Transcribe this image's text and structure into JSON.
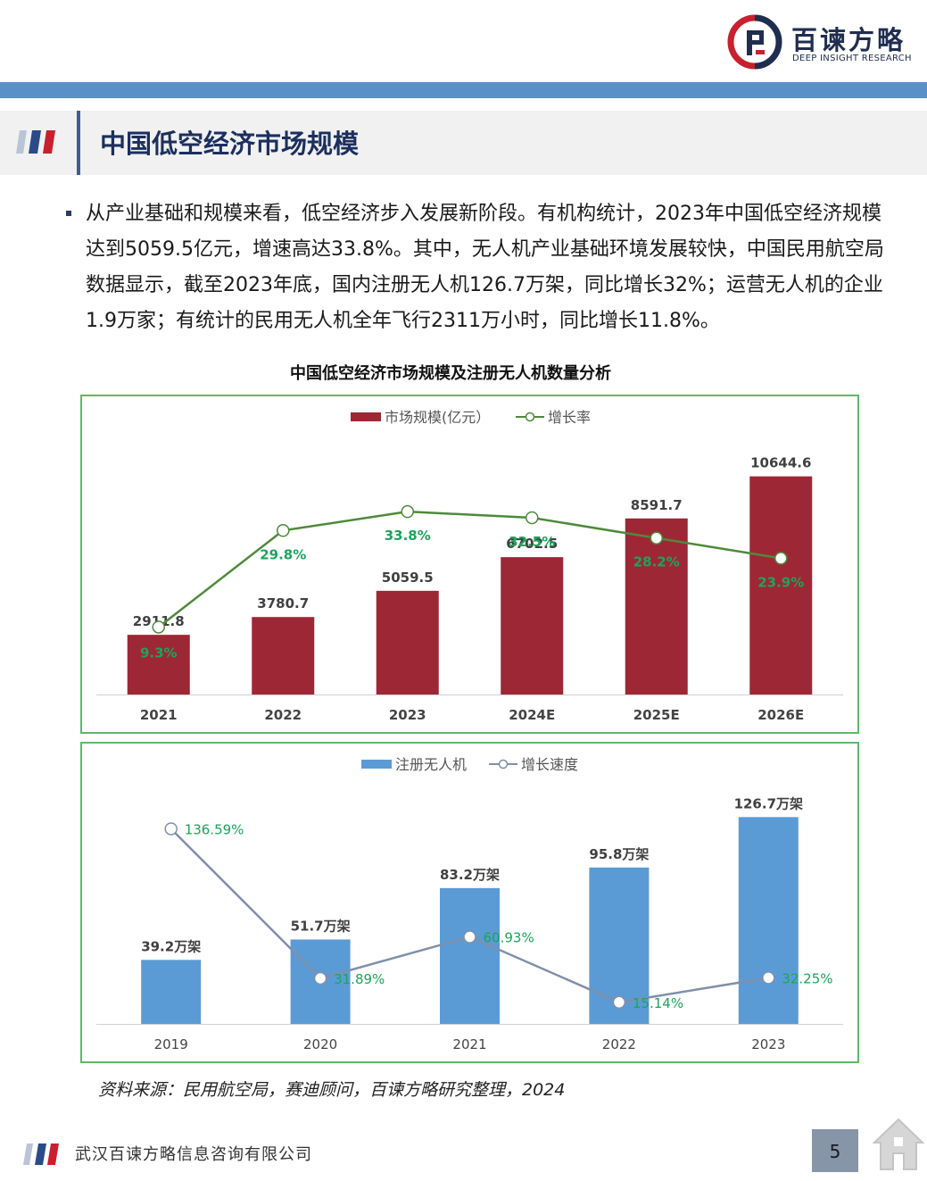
{
  "header": {
    "logo_cn": "百谏方略",
    "logo_en": "DEEP INSIGHT RESEARCH"
  },
  "section": {
    "title": "中国低空经济市场规模"
  },
  "body": {
    "paragraph": "从产业基础和规模来看，低空经济步入发展新阶段。有机构统计，2023年中国低空经济规模达到5059.5亿元，增速高达33.8%。其中，无人机产业基础环境发展较快，中国民用航空局数据显示，截至2023年底，国内注册无人机126.7万架，同比增长32%；运营无人机的企业1.9万家；有统计的民用无人机全年飞行2311万小时，同比增长11.8%。"
  },
  "chart_data": [
    {
      "type": "bar",
      "title": "中国低空经济市场规模及注册无人机数量分析",
      "categories": [
        "2021",
        "2022",
        "2023",
        "2024E",
        "2025E",
        "2026E"
      ],
      "series": [
        {
          "name": "市场规模(亿元）",
          "type": "bar",
          "values": [
            2911.8,
            3780.7,
            5059.5,
            6702.5,
            8591.7,
            10644.6
          ],
          "labels": [
            "2911.8",
            "3780.7",
            "5059.5",
            "6702.5",
            "8591.7",
            "10644.6"
          ]
        },
        {
          "name": "增长率",
          "type": "line",
          "values": [
            9.3,
            29.8,
            33.8,
            32.5,
            28.2,
            23.9
          ],
          "labels": [
            "9.3%",
            "29.8%",
            "33.8%",
            "32.5%",
            "28.2%",
            "23.9%"
          ]
        }
      ],
      "ylim": [
        0,
        11500
      ],
      "y2lim": [
        -5,
        45
      ],
      "colors": {
        "bar": "#9e2735",
        "line": "#4e8a3a",
        "line_label": "#1aa55a",
        "bar_label": "#404040"
      }
    },
    {
      "type": "bar",
      "title": "",
      "categories": [
        "2019",
        "2020",
        "2021",
        "2022",
        "2023"
      ],
      "series": [
        {
          "name": "注册无人机",
          "type": "bar",
          "values": [
            39.2,
            51.7,
            83.2,
            95.8,
            126.7
          ],
          "labels": [
            "39.2万架",
            "51.7万架",
            "83.2万架",
            "95.8万架",
            "126.7万架"
          ]
        },
        {
          "name": "增长速度",
          "type": "line",
          "values": [
            136.59,
            31.89,
            60.93,
            15.14,
            32.25
          ],
          "labels": [
            "136.59%",
            "31.89%",
            "60.93%",
            "15.14%",
            "32.25%"
          ]
        }
      ],
      "ylim": [
        0,
        140
      ],
      "y2lim": [
        0,
        160
      ],
      "colors": {
        "bar": "#5b9bd5",
        "line": "#7f8fab",
        "line_label": "#1aa55a",
        "bar_label": "#404040"
      }
    }
  ],
  "source": "资料来源：民用航空局，赛迪顾问，百谏方略研究整理，2024",
  "footer": {
    "company": "武汉百谏方略信息咨询有限公司",
    "page_number": "5"
  }
}
